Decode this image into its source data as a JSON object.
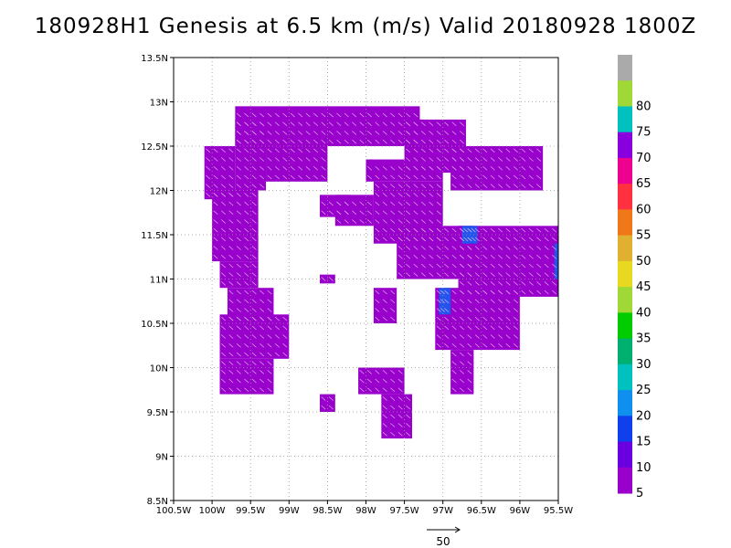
{
  "title": "180928H1 Genesis at 6.5 km (m/s) Valid 20180928 1800Z",
  "map": {
    "lon_range": [
      -100.5,
      -95.5
    ],
    "lat_range": [
      8.5,
      13.5
    ],
    "x_ticks": [
      {
        "lon": -100.5,
        "label": "100.5W"
      },
      {
        "lon": -100.0,
        "label": "100W"
      },
      {
        "lon": -99.5,
        "label": "99.5W"
      },
      {
        "lon": -99.0,
        "label": "99W"
      },
      {
        "lon": -98.5,
        "label": "98.5W"
      },
      {
        "lon": -98.0,
        "label": "98W"
      },
      {
        "lon": -97.5,
        "label": "97.5W"
      },
      {
        "lon": -97.0,
        "label": "97W"
      },
      {
        "lon": -96.5,
        "label": "96.5W"
      },
      {
        "lon": -96.0,
        "label": "96W"
      },
      {
        "lon": -95.5,
        "label": "95.5W"
      }
    ],
    "y_ticks": [
      {
        "lat": 8.5,
        "label": "8.5N"
      },
      {
        "lat": 9.0,
        "label": "9N"
      },
      {
        "lat": 9.5,
        "label": "9.5N"
      },
      {
        "lat": 10.0,
        "label": "10N"
      },
      {
        "lat": 10.5,
        "label": "10.5N"
      },
      {
        "lat": 11.0,
        "label": "11N"
      },
      {
        "lat": 11.5,
        "label": "11.5N"
      },
      {
        "lat": 12.0,
        "label": "12N"
      },
      {
        "lat": 12.5,
        "label": "12.5N"
      },
      {
        "lat": 13.0,
        "label": "13N"
      },
      {
        "lat": 13.5,
        "label": "13.5N"
      }
    ],
    "grid": true,
    "colors": {
      "calm": "#9900cc",
      "light": "#7a1ed2",
      "mid": "#6a00e0",
      "blue": "#2255ee"
    },
    "regions": [
      {
        "lon0": -99.7,
        "lon1": -97.3,
        "lat0": 12.5,
        "lat1": 12.95,
        "speed": 5
      },
      {
        "lon0": -97.5,
        "lon1": -96.7,
        "lat0": 12.2,
        "lat1": 12.8,
        "speed": 5
      },
      {
        "lon0": -96.9,
        "lon1": -95.7,
        "lat0": 12.0,
        "lat1": 12.5,
        "speed": 5
      },
      {
        "lon0": -100.1,
        "lon1": -99.7,
        "lat0": 11.9,
        "lat1": 12.5,
        "speed": 5
      },
      {
        "lon0": -99.7,
        "lon1": -99.3,
        "lat0": 12.0,
        "lat1": 12.8,
        "speed": 5
      },
      {
        "lon0": -99.3,
        "lon1": -98.5,
        "lat0": 12.1,
        "lat1": 12.5,
        "speed": 5
      },
      {
        "lon0": -98.0,
        "lon1": -97.0,
        "lat0": 12.1,
        "lat1": 12.35,
        "speed": 5
      },
      {
        "lon0": -100.0,
        "lon1": -99.4,
        "lat0": 11.5,
        "lat1": 12.0,
        "speed": 5
      },
      {
        "lon0": -100.0,
        "lon1": -99.4,
        "lat0": 11.2,
        "lat1": 11.5,
        "speed": 5
      },
      {
        "lon0": -99.9,
        "lon1": -99.4,
        "lat0": 10.9,
        "lat1": 11.2,
        "speed": 5
      },
      {
        "lon0": -99.8,
        "lon1": -99.2,
        "lat0": 10.5,
        "lat1": 10.9,
        "speed": 5
      },
      {
        "lon0": -99.9,
        "lon1": -99.0,
        "lat0": 10.1,
        "lat1": 10.6,
        "speed": 5
      },
      {
        "lon0": -99.9,
        "lon1": -99.2,
        "lat0": 9.7,
        "lat1": 10.1,
        "speed": 5
      },
      {
        "lon0": -98.4,
        "lon1": -97.9,
        "lat0": 11.6,
        "lat1": 11.95,
        "speed": 5
      },
      {
        "lon0": -98.6,
        "lon1": -98.2,
        "lat0": 11.7,
        "lat1": 11.95,
        "speed": 5
      },
      {
        "lon0": -97.9,
        "lon1": -97.0,
        "lat0": 11.4,
        "lat1": 12.1,
        "speed": 5
      },
      {
        "lon0": -97.6,
        "lon1": -96.6,
        "lat0": 11.0,
        "lat1": 11.6,
        "speed": 5
      },
      {
        "lon0": -96.8,
        "lon1": -95.5,
        "lat0": 10.8,
        "lat1": 11.6,
        "speed": 5
      },
      {
        "lon0": -97.1,
        "lon1": -96.0,
        "lat0": 10.2,
        "lat1": 10.9,
        "speed": 5
      },
      {
        "lon0": -96.9,
        "lon1": -96.6,
        "lat0": 9.7,
        "lat1": 10.2,
        "speed": 5
      },
      {
        "lon0": -98.6,
        "lon1": -98.4,
        "lat0": 10.95,
        "lat1": 11.05,
        "speed": 5
      },
      {
        "lon0": -97.9,
        "lon1": -97.6,
        "lat0": 10.5,
        "lat1": 10.9,
        "speed": 5
      },
      {
        "lon0": -98.1,
        "lon1": -97.5,
        "lat0": 9.7,
        "lat1": 10.0,
        "speed": 5
      },
      {
        "lon0": -97.8,
        "lon1": -97.4,
        "lat0": 9.2,
        "lat1": 9.7,
        "speed": 5
      },
      {
        "lon0": -98.6,
        "lon1": -98.4,
        "lat0": 9.5,
        "lat1": 9.7,
        "speed": 5
      }
    ],
    "blue_regions": [
      {
        "lon0": -96.75,
        "lon1": -96.55,
        "lat0": 11.4,
        "lat1": 11.6,
        "speed": 12
      },
      {
        "lon0": -97.05,
        "lon1": -96.9,
        "lat0": 10.6,
        "lat1": 10.9,
        "speed": 12
      },
      {
        "lon0": -95.55,
        "lon1": -95.5,
        "lat0": 11.0,
        "lat1": 11.4,
        "speed": 12
      }
    ]
  },
  "colorbar": {
    "bins": [
      {
        "color": "#aaaaaa"
      },
      {
        "color": "#a0d838",
        "label": "80"
      },
      {
        "color": "#00c0c0",
        "label": "75"
      },
      {
        "color": "#8800dd",
        "label": "70"
      },
      {
        "color": "#ee0090",
        "label": "65"
      },
      {
        "color": "#ff3040",
        "label": "60"
      },
      {
        "color": "#f07818",
        "label": "55"
      },
      {
        "color": "#e0b030",
        "label": "50"
      },
      {
        "color": "#e8d820",
        "label": "45"
      },
      {
        "color": "#a0d838",
        "label": "40"
      },
      {
        "color": "#00cc00",
        "label": "35"
      },
      {
        "color": "#00b070",
        "label": "30"
      },
      {
        "color": "#00c0c0",
        "label": "25"
      },
      {
        "color": "#1090ee",
        "label": "20"
      },
      {
        "color": "#1040ee",
        "label": "15"
      },
      {
        "color": "#6a00e0",
        "label": "10"
      },
      {
        "color": "#9900cc",
        "label": "5"
      }
    ]
  },
  "reference_vector": {
    "label": "50"
  }
}
